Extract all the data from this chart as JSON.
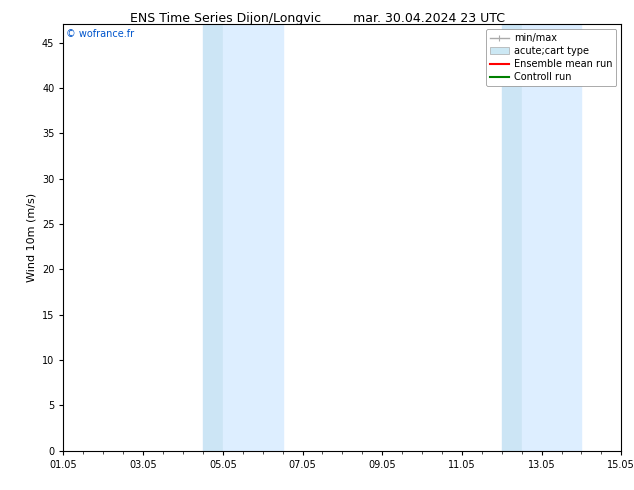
{
  "title_left": "ENS Time Series Dijon/Longvic",
  "title_right": "mar. 30.04.2024 23 UTC",
  "ylabel": "Wind 10m (m/s)",
  "xlim": [
    0,
    14.0
  ],
  "ylim": [
    0,
    47
  ],
  "yticks": [
    0,
    5,
    10,
    15,
    20,
    25,
    30,
    35,
    40,
    45
  ],
  "xtick_labels": [
    "01.05",
    "03.05",
    "05.05",
    "07.05",
    "09.05",
    "11.05",
    "13.05",
    "15.05"
  ],
  "xtick_positions": [
    0,
    2,
    4,
    6,
    8,
    10,
    12,
    14
  ],
  "background_color": "#ffffff",
  "plot_bg_color": "#ffffff",
  "shaded_regions": [
    [
      3.5,
      4.0,
      "#cce5f5"
    ],
    [
      4.0,
      5.5,
      "#ddeeff"
    ],
    [
      11.0,
      11.5,
      "#cce5f5"
    ],
    [
      11.5,
      13.0,
      "#ddeeff"
    ]
  ],
  "watermark_text": "© wofrance.fr",
  "watermark_color": "#0055cc",
  "legend_entries": [
    {
      "label": "min/max",
      "color": "#aaaaaa",
      "lw": 1.0,
      "type": "errbar"
    },
    {
      "label": "acute;cart type",
      "color": "#cce8f4",
      "lw": 7,
      "type": "bar"
    },
    {
      "label": "Ensemble mean run",
      "color": "#ff0000",
      "lw": 1.5,
      "type": "line"
    },
    {
      "label": "Controll run",
      "color": "#008000",
      "lw": 1.5,
      "type": "line"
    }
  ],
  "title_fontsize": 9,
  "tick_fontsize": 7,
  "ylabel_fontsize": 8,
  "legend_fontsize": 7
}
